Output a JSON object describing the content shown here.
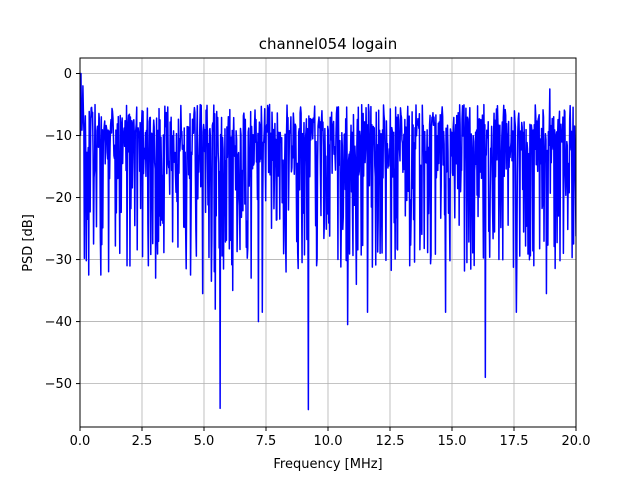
{
  "chart_data": {
    "type": "line",
    "title": "channel054 logain",
    "xlabel": "Frequency [MHz]",
    "ylabel": "PSD [dB]",
    "xlim": [
      0,
      20
    ],
    "ylim": [
      -57,
      2.5
    ],
    "grid": true,
    "x_ticks": [
      0,
      2.5,
      5,
      7.5,
      10,
      12.5,
      15,
      17.5,
      20
    ],
    "x_tick_labels": [
      "0.0",
      "2.5",
      "5.0",
      "7.5",
      "10.0",
      "12.5",
      "15.0",
      "17.5",
      "20.0"
    ],
    "y_ticks": [
      0,
      -10,
      -20,
      -30,
      -40,
      -50
    ],
    "y_tick_labels": [
      "0",
      "−10",
      "−20",
      "−30",
      "−40",
      "−50"
    ],
    "series": [
      {
        "color": "#0000ff",
        "x_start": 0,
        "x_end": 20,
        "num_points": 1024,
        "typical_level_db": -14,
        "upper_envelope_db": -5,
        "lower_envelope_db": -28,
        "peaks": [
          {
            "x": 0.04,
            "y": 0
          },
          {
            "x": 0.12,
            "y": -2
          },
          {
            "x": 18.95,
            "y": -2.5
          }
        ],
        "dips": [
          {
            "x": 0.3,
            "y": -23.5
          },
          {
            "x": 0.35,
            "y": -32.5
          },
          {
            "x": 0.55,
            "y": -27.5
          },
          {
            "x": 0.85,
            "y": -32.5
          },
          {
            "x": 1.6,
            "y": -29
          },
          {
            "x": 1.9,
            "y": -31
          },
          {
            "x": 2.75,
            "y": -31
          },
          {
            "x": 3.05,
            "y": -33
          },
          {
            "x": 3.95,
            "y": -28
          },
          {
            "x": 4.45,
            "y": -32.5
          },
          {
            "x": 4.95,
            "y": -35.5
          },
          {
            "x": 5.3,
            "y": -33.5
          },
          {
            "x": 5.45,
            "y": -38
          },
          {
            "x": 5.65,
            "y": -54
          },
          {
            "x": 6.15,
            "y": -35
          },
          {
            "x": 6.9,
            "y": -33
          },
          {
            "x": 7.2,
            "y": -40
          },
          {
            "x": 7.35,
            "y": -38.5
          },
          {
            "x": 8.3,
            "y": -32
          },
          {
            "x": 8.95,
            "y": -30.5
          },
          {
            "x": 9.2,
            "y": -54.2
          },
          {
            "x": 9.55,
            "y": -31
          },
          {
            "x": 10.4,
            "y": -30
          },
          {
            "x": 10.8,
            "y": -40.5
          },
          {
            "x": 11.15,
            "y": -34
          },
          {
            "x": 11.6,
            "y": -38.5
          },
          {
            "x": 12.1,
            "y": -29
          },
          {
            "x": 13.3,
            "y": -31
          },
          {
            "x": 14.75,
            "y": -38.5
          },
          {
            "x": 15.6,
            "y": -30.5
          },
          {
            "x": 16.35,
            "y": -49
          },
          {
            "x": 16.9,
            "y": -30
          },
          {
            "x": 17.6,
            "y": -38.5
          },
          {
            "x": 18.3,
            "y": -31
          },
          {
            "x": 18.8,
            "y": -35.5
          },
          {
            "x": 19.5,
            "y": -29
          },
          {
            "x": 19.9,
            "y": -27.5
          }
        ]
      }
    ]
  }
}
